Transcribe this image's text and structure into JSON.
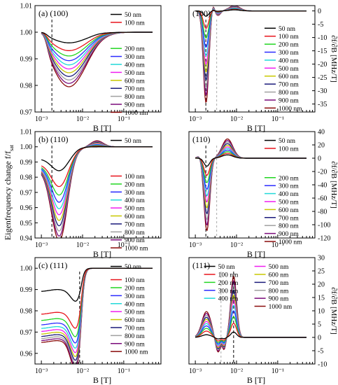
{
  "figure": {
    "ylabel_left": "Eigenfrequency change f/f",
    "ylabel_left_sub": "sat",
    "ylabel_right": "∂f/∂B [MHz/T]"
  },
  "chart_data": [
    {
      "type": "line",
      "label": "(a) (100)",
      "xlabel": "B [T]",
      "xscale": "log",
      "xlim": [
        0.0007,
        0.8
      ],
      "ylim": [
        0.97,
        1.01
      ],
      "yticks": [
        "0.97",
        "0.98",
        "0.99",
        "1.00",
        "1.01"
      ],
      "xticks": [
        "10⁻³",
        "10⁻²",
        "10⁻¹"
      ],
      "vline": 0.0018,
      "legend": [
        "50 nm",
        "100 nm",
        "200 nm",
        "300 nm",
        "400 nm",
        "500 nm",
        "600 nm",
        "700 nm",
        "800 nm",
        "900 nm",
        "1000 nm"
      ]
    },
    {
      "type": "line",
      "label": "(100)",
      "xlabel": "B [T]",
      "xscale": "log",
      "xlim": [
        0.0007,
        0.8
      ],
      "ylim": [
        -38,
        2
      ],
      "yticks": [
        "0",
        "-5",
        "-10",
        "-15",
        "-20",
        "-25",
        "-30",
        "-35"
      ],
      "xticks": [
        "10⁻³",
        "10⁻²",
        "10⁻¹"
      ],
      "vline": 0.0018,
      "legend": [
        "50 nm",
        "100 nm",
        "200 nm",
        "300 nm",
        "400 nm",
        "500 nm",
        "600 nm",
        "700 nm",
        "800 nm",
        "900 nm",
        "1000 nm"
      ]
    },
    {
      "type": "line",
      "label": "(b) (110)",
      "xlabel": "B [T]",
      "xscale": "log",
      "xlim": [
        0.0007,
        0.8
      ],
      "ylim": [
        0.94,
        1.01
      ],
      "yticks": [
        "0.94",
        "0.95",
        "0.96",
        "0.97",
        "0.98",
        "0.99",
        "1.00",
        "1.01"
      ],
      "xticks": [
        "10⁻³",
        "10⁻²",
        "10⁻¹"
      ],
      "vline": 0.0018,
      "legend": [
        "50 nm",
        "100 nm",
        "200 nm",
        "300 nm",
        "400 nm",
        "500 nm",
        "600 nm",
        "700 nm",
        "800 nm",
        "900 nm",
        "1000 nm"
      ]
    },
    {
      "type": "line",
      "label": "(110)",
      "xlabel": "B [T]",
      "xscale": "log",
      "xlim": [
        0.0007,
        0.8
      ],
      "ylim": [
        -120,
        40
      ],
      "yticks": [
        "40",
        "20",
        "0",
        "-20",
        "-40",
        "-60",
        "-80",
        "-100",
        "-120"
      ],
      "xticks": [
        "10⁻³",
        "10⁻²",
        "10⁻¹"
      ],
      "vline": 0.0018,
      "legend": [
        "50 nm",
        "100 nm",
        "200 nm",
        "300 nm",
        "400 nm",
        "500 nm",
        "600 nm",
        "700 nm",
        "800 nm",
        "900 nm",
        "1000 nm"
      ]
    },
    {
      "type": "line",
      "label": "(c) (111)",
      "xlabel": "B [T]",
      "xscale": "log",
      "xlim": [
        0.0007,
        0.8
      ],
      "ylim": [
        0.955,
        1.005
      ],
      "yticks": [
        "0.96",
        "0.97",
        "0.98",
        "0.99",
        "1.00"
      ],
      "xticks": [
        "10⁻³",
        "10⁻²",
        "10⁻¹"
      ],
      "vline": 0.0085,
      "legend": [
        "50 nm",
        "100 nm",
        "200 nm",
        "300 nm",
        "400 nm",
        "500 nm",
        "600 nm",
        "700 nm",
        "800 nm",
        "900 nm",
        "1000 nm"
      ]
    },
    {
      "type": "line",
      "label": "(111)",
      "xlabel": "B [T]",
      "xscale": "log",
      "xlim": [
        0.0007,
        0.8
      ],
      "ylim": [
        -10,
        30
      ],
      "yticks": [
        "30",
        "25",
        "20",
        "15",
        "10",
        "5",
        "0",
        "-5",
        "-10"
      ],
      "xticks": [
        "10⁻³",
        "10⁻²",
        "10⁻¹"
      ],
      "vline": 0.0085,
      "legend": [
        "50 nm",
        "100 nm",
        "200 nm",
        "300 nm",
        "400 nm",
        "500 nm",
        "600 nm",
        "700 nm",
        "800 nm",
        "900 nm",
        "1000 nm"
      ]
    }
  ],
  "series_colors": [
    "#000000",
    "#e8141c",
    "#22d622",
    "#2b2bff",
    "#21d9d9",
    "#f01ef0",
    "#c8c800",
    "#1a1a7a",
    "#a0a0a0",
    "#7a0a7a",
    "#8a0a0a"
  ]
}
